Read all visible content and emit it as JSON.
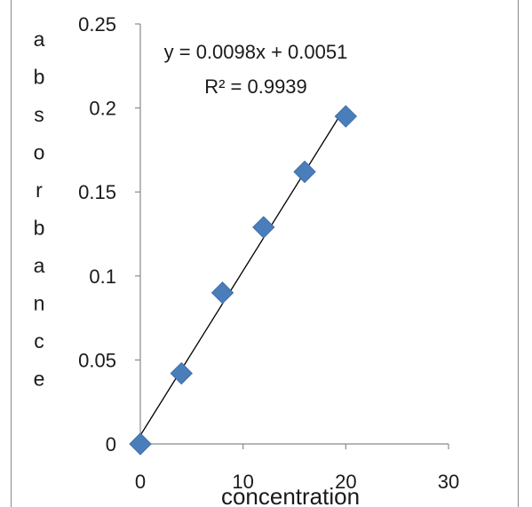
{
  "chart_data": {
    "type": "scatter",
    "title": "",
    "xlabel": "concentration",
    "ylabel": "absorbance",
    "xlim": [
      0,
      30
    ],
    "ylim": [
      0,
      0.25
    ],
    "x_ticks": [
      0,
      10,
      20,
      30
    ],
    "y_ticks": [
      0,
      0.05,
      0.1,
      0.15,
      0.2,
      0.25
    ],
    "x_tick_labels": [
      "0",
      "10",
      "20",
      "30"
    ],
    "y_tick_labels": [
      "0",
      "0.05",
      "0.1",
      "0.15",
      "0.2",
      "0.25"
    ],
    "grid": false,
    "legend": "none",
    "series": [
      {
        "x": [
          0,
          4,
          8,
          12,
          16,
          20
        ],
        "y": [
          0,
          0.042,
          0.09,
          0.129,
          0.162,
          0.195
        ],
        "marker": "diamond",
        "color": "#4a7ebb"
      }
    ],
    "trendline": {
      "type": "linear",
      "slope": 0.0098,
      "intercept": 0.0051,
      "x_range": [
        0,
        20
      ],
      "color": "#000000",
      "equation": "y = 0.0098x + 0.0051",
      "r_squared": "R² = 0.9939"
    }
  }
}
